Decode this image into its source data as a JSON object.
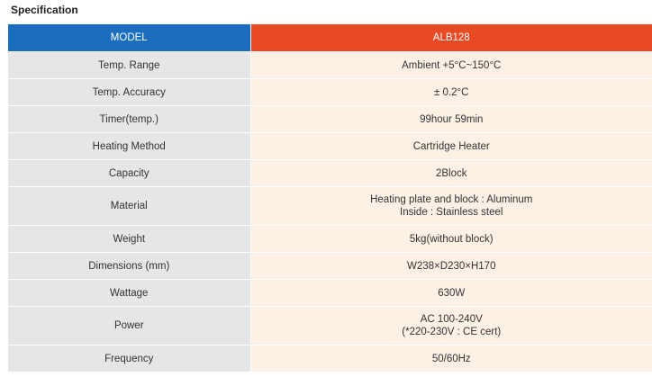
{
  "title": "Specification",
  "header": {
    "label": "MODEL",
    "value": "ALB128"
  },
  "rows": [
    {
      "label": "Temp. Range",
      "value": [
        "Ambient +5°C~150°C"
      ]
    },
    {
      "label": "Temp. Accuracy",
      "value": [
        "± 0.2°C"
      ]
    },
    {
      "label": "Timer(temp.)",
      "value": [
        "99hour 59min"
      ]
    },
    {
      "label": "Heating Method",
      "value": [
        "Cartridge Heater"
      ]
    },
    {
      "label": "Capacity",
      "value": [
        "2Block"
      ]
    },
    {
      "label": "Material",
      "value": [
        "Heating plate and block : Aluminum",
        "Inside : Stainless steel"
      ]
    },
    {
      "label": "Weight",
      "value": [
        "5kg(without block)"
      ]
    },
    {
      "label": "Dimensions (mm)",
      "value": [
        "W238×D230×H170"
      ]
    },
    {
      "label": "Wattage",
      "value": [
        "630W"
      ]
    },
    {
      "label": "Power",
      "value": [
        "AC 100-240V",
        "(*220-230V : CE cert)"
      ]
    },
    {
      "label": "Frequency",
      "value": [
        "50/60Hz"
      ]
    }
  ]
}
